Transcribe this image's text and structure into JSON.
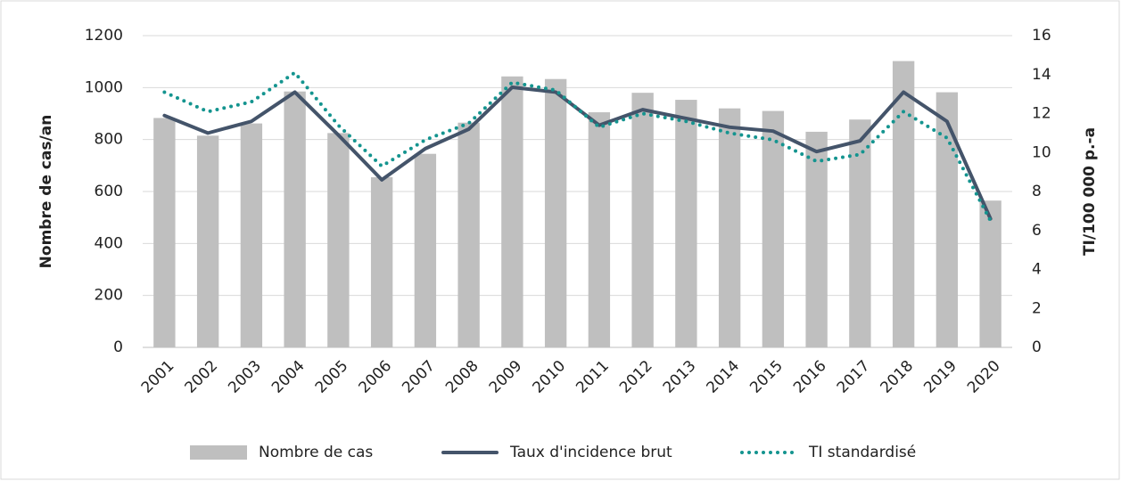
{
  "chart_data": {
    "type": "combo",
    "y_label": "Nombre de cas/an",
    "y2_label": "TI/100 000 p.-a",
    "categories": [
      "2001",
      "2002",
      "2003",
      "2004",
      "2005",
      "2006",
      "2007",
      "2008",
      "2009",
      "2010",
      "2011",
      "2012",
      "2013",
      "2014",
      "2015",
      "2016",
      "2017",
      "2018",
      "2019",
      "2020"
    ],
    "series": [
      {
        "name": "Nombre de cas",
        "type": "bar",
        "color": "#bfbfbf",
        "values": [
          883,
          815,
          862,
          985,
          825,
          655,
          745,
          865,
          1043,
          1033,
          905,
          980,
          953,
          920,
          910,
          830,
          877,
          1102,
          982,
          565
        ]
      },
      {
        "name": "Taux d'incidence brut",
        "type": "line",
        "axis": "y2",
        "color": "#44546a",
        "linestyle": "solid",
        "values": [
          11.9,
          11.0,
          11.6,
          13.1,
          10.9,
          8.6,
          10.2,
          11.2,
          13.35,
          13.1,
          11.4,
          12.2,
          11.75,
          11.3,
          11.1,
          10.05,
          10.6,
          13.1,
          11.6,
          6.6
        ]
      },
      {
        "name": "TI standardisé",
        "type": "line",
        "axis": "y2",
        "color": "#14948f",
        "linestyle": "dotted",
        "values": [
          13.1,
          12.1,
          12.6,
          14.1,
          11.4,
          9.3,
          10.65,
          11.5,
          13.6,
          13.2,
          11.3,
          12.0,
          11.6,
          11.0,
          10.65,
          9.55,
          9.9,
          12.1,
          10.75,
          6.5
        ]
      }
    ],
    "ylim": [
      0,
      1200
    ],
    "yticks": [
      0,
      200,
      400,
      600,
      800,
      1000,
      1200
    ],
    "y2lim": [
      0,
      16
    ],
    "y2ticks": [
      0,
      2,
      4,
      6,
      8,
      10,
      12,
      14,
      16
    ],
    "grid": true,
    "legend": "bottom"
  }
}
